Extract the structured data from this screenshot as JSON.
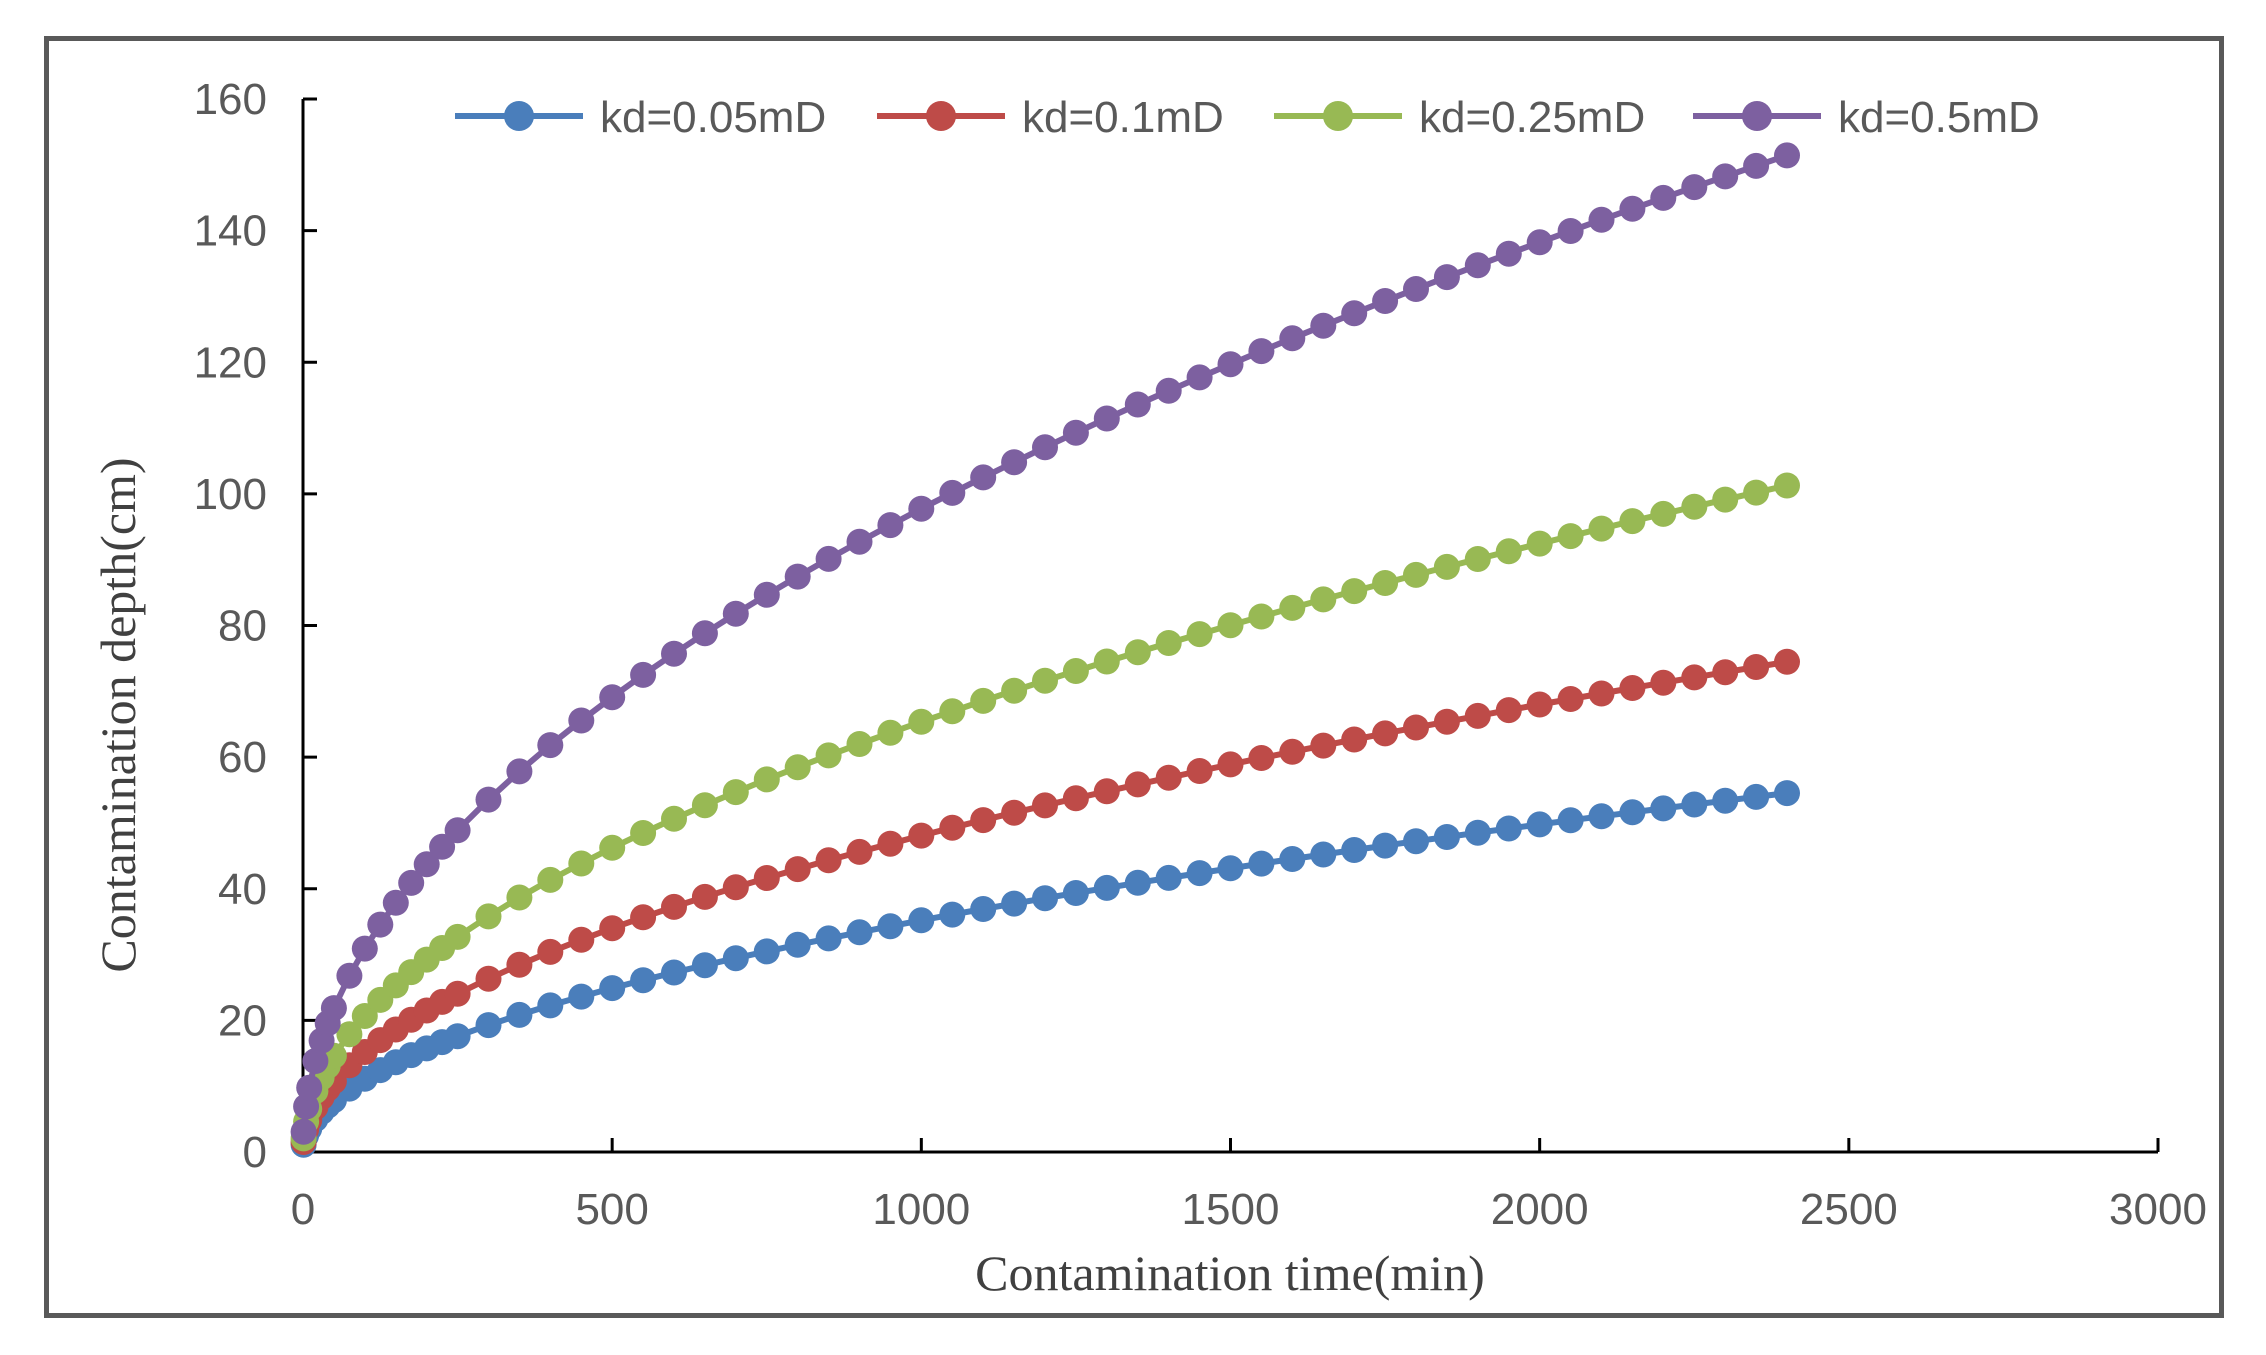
{
  "chart_data": {
    "type": "line",
    "title": "",
    "xlabel": "Contamination time(min)",
    "ylabel": "Contamination depth(cm)",
    "xlim": [
      0,
      3000
    ],
    "ylim": [
      0,
      160
    ],
    "xticks": [
      0,
      500,
      1000,
      1500,
      2000,
      2500,
      3000
    ],
    "yticks": [
      0,
      20,
      40,
      60,
      80,
      100,
      120,
      140,
      160
    ],
    "grid": false,
    "legend_position": "top",
    "markers": "circle",
    "x": [
      1,
      5,
      10,
      20,
      30,
      40,
      50,
      75,
      100,
      125,
      150,
      175,
      200,
      225,
      250,
      300,
      350,
      400,
      450,
      500,
      550,
      600,
      650,
      700,
      750,
      800,
      850,
      900,
      950,
      1000,
      1050,
      1100,
      1150,
      1200,
      1250,
      1300,
      1350,
      1400,
      1450,
      1500,
      1550,
      1600,
      1650,
      1700,
      1750,
      1800,
      1850,
      1900,
      1950,
      2000,
      2050,
      2100,
      2150,
      2200,
      2250,
      2300,
      2350,
      2400
    ],
    "series": [
      {
        "name": "kd=0.05mD",
        "color": "#4a7ebb",
        "values": [
          1.11,
          2.49,
          3.52,
          4.98,
          6.1,
          7.04,
          7.87,
          9.64,
          11.13,
          12.45,
          13.63,
          14.73,
          15.74,
          16.7,
          17.6,
          19.28,
          20.83,
          22.27,
          23.62,
          24.9,
          26.11,
          27.27,
          28.38,
          29.45,
          30.48,
          31.48,
          32.45,
          33.39,
          34.3,
          35.2,
          36.07,
          36.92,
          37.75,
          38.56,
          39.35,
          40.13,
          40.9,
          41.65,
          42.38,
          43.11,
          43.82,
          44.52,
          45.21,
          45.89,
          46.56,
          47.22,
          47.87,
          48.52,
          49.15,
          49.78,
          50.4,
          51.01,
          51.61,
          52.21,
          52.8,
          53.38,
          53.96,
          54.53
        ]
      },
      {
        "name": "kd=0.1mD",
        "color": "#be4b48",
        "values": [
          1.52,
          3.4,
          4.81,
          6.8,
          8.33,
          9.62,
          10.75,
          13.17,
          15.2,
          17.0,
          18.62,
          20.11,
          21.5,
          22.8,
          24.04,
          26.33,
          28.44,
          30.41,
          32.25,
          34.0,
          35.66,
          37.24,
          38.76,
          40.22,
          41.64,
          42.99,
          44.32,
          45.6,
          46.85,
          48.08,
          49.27,
          50.43,
          51.56,
          52.67,
          53.75,
          54.81,
          55.86,
          56.88,
          57.89,
          58.89,
          59.86,
          60.81,
          61.75,
          62.68,
          63.6,
          64.5,
          65.39,
          66.27,
          67.14,
          67.99,
          68.83,
          69.67,
          70.5,
          71.31,
          72.12,
          72.91,
          73.7,
          74.48
        ]
      },
      {
        "name": "kd=0.25mD",
        "color": "#98b954",
        "values": [
          2.07,
          4.62,
          6.54,
          9.25,
          11.32,
          13.07,
          14.62,
          17.9,
          20.67,
          23.11,
          25.32,
          27.34,
          29.23,
          31.0,
          32.68,
          35.8,
          38.67,
          41.34,
          43.84,
          46.22,
          48.47,
          50.63,
          52.7,
          54.69,
          56.61,
          58.46,
          60.26,
          62.0,
          63.7,
          65.36,
          66.97,
          68.55,
          70.1,
          71.61,
          73.08,
          74.53,
          75.95,
          77.34,
          78.7,
          80.05,
          81.37,
          82.68,
          83.96,
          85.22,
          86.46,
          87.69,
          88.9,
          90.1,
          91.28,
          92.44,
          93.59,
          94.73,
          95.86,
          96.96,
          98.05,
          99.13,
          100.2,
          101.27
        ]
      },
      {
        "name": "kd=0.5mD",
        "color": "#7d60a0",
        "values": [
          3.09,
          6.91,
          9.77,
          13.82,
          16.93,
          19.55,
          21.86,
          26.77,
          30.91,
          34.56,
          37.86,
          40.89,
          43.71,
          46.37,
          48.88,
          53.54,
          57.83,
          61.82,
          65.57,
          69.11,
          72.49,
          75.71,
          78.81,
          81.79,
          84.66,
          87.43,
          90.12,
          92.73,
          95.26,
          97.74,
          100.15,
          102.51,
          104.82,
          107.08,
          109.29,
          111.46,
          113.58,
          115.66,
          117.7,
          119.71,
          121.69,
          123.64,
          125.56,
          127.44,
          129.3,
          131.13,
          132.94,
          134.73,
          136.49,
          138.22,
          139.94,
          141.64,
          143.32,
          144.98,
          146.62,
          148.24,
          149.84,
          151.43
        ]
      }
    ]
  }
}
